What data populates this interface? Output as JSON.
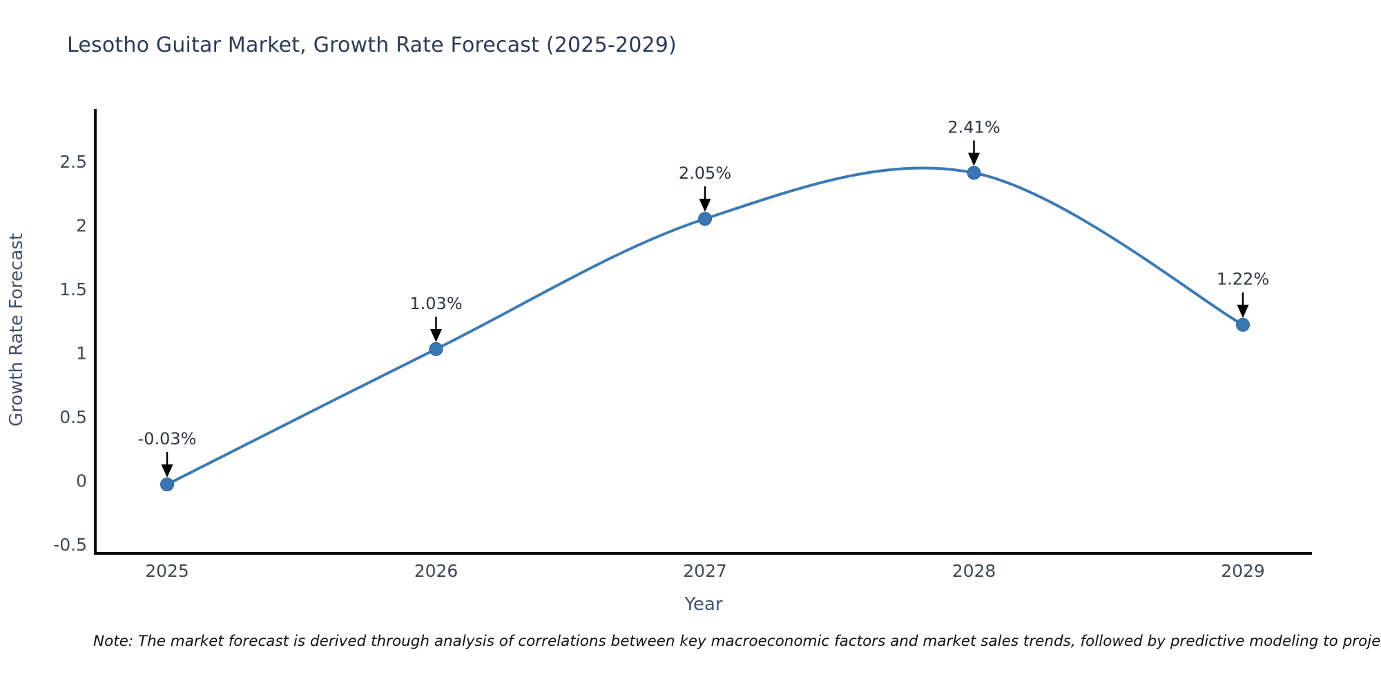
{
  "title": "Lesotho Guitar Market, Growth Rate Forecast (2025-2029)",
  "note": "Note: The market forecast is derived through analysis of correlations between key macroeconomic factors and market sales trends, followed by predictive modeling to project future sa",
  "chart_data": {
    "type": "line",
    "x": [
      2025,
      2026,
      2027,
      2028,
      2029
    ],
    "xtick_labels": [
      "2025",
      "2026",
      "2027",
      "2028",
      "2029"
    ],
    "values": [
      -0.03,
      1.03,
      2.05,
      2.41,
      1.22
    ],
    "point_labels": [
      "-0.03%",
      "1.03%",
      "2.05%",
      "2.41%",
      "1.22%"
    ],
    "title": "Lesotho Guitar Market, Growth Rate Forecast (2025-2029)",
    "xlabel": "Year",
    "ylabel": "Growth Rate Forecast",
    "yticks": [
      -0.5,
      0,
      0.5,
      1,
      1.5,
      2,
      2.5
    ],
    "ylim": [
      -0.57,
      2.91
    ],
    "grid": false,
    "legend": false,
    "smooth_spline": true,
    "line_color": "#3d7ab5",
    "marker_fill": "#3976b3",
    "marker_edge": "#2b5e8f",
    "annotation_arrow_color": "#000000"
  },
  "colors": {
    "title": "#2c3a55",
    "tick_label": "#3f4855",
    "axis_label": "#42516d",
    "annotation_text": "#2f3742",
    "spine": "#0a0a0a",
    "note_text": "#111111",
    "background": "#ffffff"
  }
}
